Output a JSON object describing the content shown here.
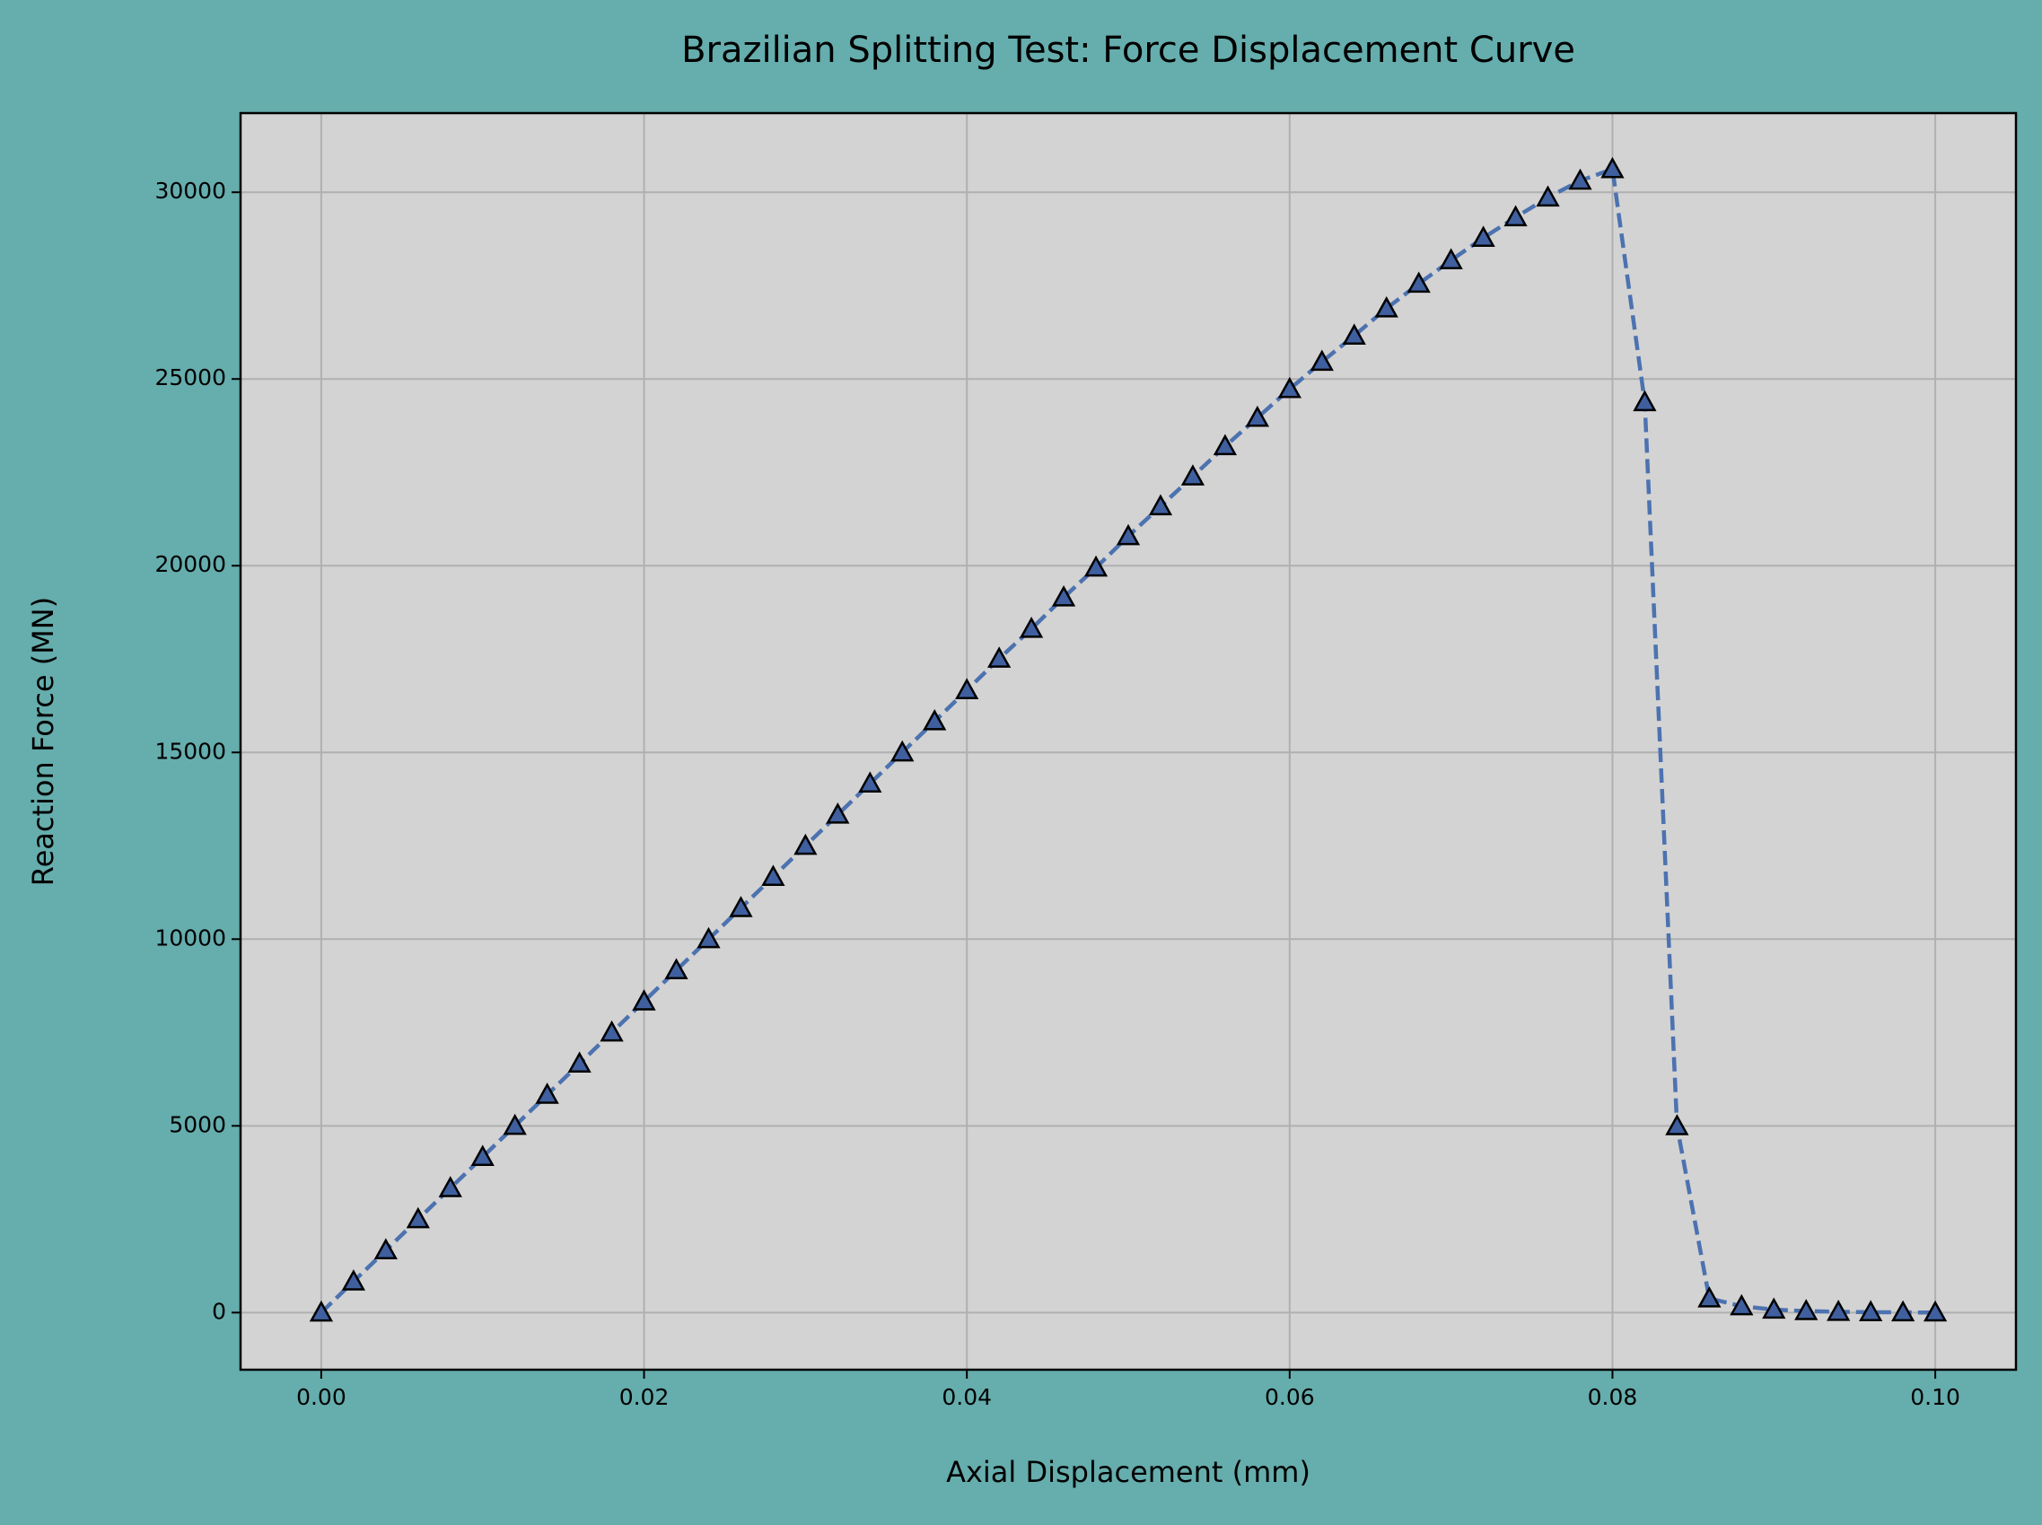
{
  "chart_data": {
    "type": "line",
    "title": "Brazilian Splitting Test: Force Displacement Curve",
    "x_label": "Axial Displacement (mm)",
    "y_label": "Reaction Force (MN)",
    "x": [
      0,
      0.002,
      0.004,
      0.006,
      0.008,
      0.01,
      0.012,
      0.014,
      0.016,
      0.018,
      0.02,
      0.022,
      0.024,
      0.026,
      0.028,
      0.03,
      0.032,
      0.034,
      0.036,
      0.038,
      0.04,
      0.042,
      0.044,
      0.046,
      0.048,
      0.05,
      0.052,
      0.054,
      0.056,
      0.058,
      0.06,
      0.062,
      0.064,
      0.066,
      0.068,
      0.07,
      0.072,
      0.074,
      0.076,
      0.078,
      0.08,
      0.082,
      0.084,
      0.086,
      0.088,
      0.09,
      0.092,
      0.094,
      0.096,
      0.098,
      0.1
    ],
    "values": [
      0,
      833,
      1667,
      2500,
      3333,
      4167,
      5000,
      5833,
      6667,
      7500,
      8333,
      9167,
      10000,
      10833,
      11667,
      12500,
      13333,
      14167,
      15000,
      15833,
      16667,
      17510,
      18310,
      19150,
      19950,
      20790,
      21590,
      22390,
      23200,
      23960,
      24730,
      25460,
      26160,
      26890,
      27550,
      28180,
      28780,
      29330,
      29860,
      30310,
      30620,
      24380,
      4990,
      380,
      170,
      80,
      40,
      20,
      10,
      5,
      2
    ],
    "color": "#4c72b0",
    "marker_color": "#3f5f9f",
    "xlim": [
      -0.005,
      0.105
    ],
    "ylim": [
      -1530,
      32120
    ],
    "xticks": [
      {
        "value": 0,
        "label": "0.00"
      },
      0.02,
      0.04,
      0.06,
      0.08,
      {
        "value": 0.1,
        "label": "0.10"
      }
    ],
    "yticks": [
      0,
      5000,
      10000,
      15000,
      20000,
      25000,
      30000
    ],
    "grid": true
  }
}
